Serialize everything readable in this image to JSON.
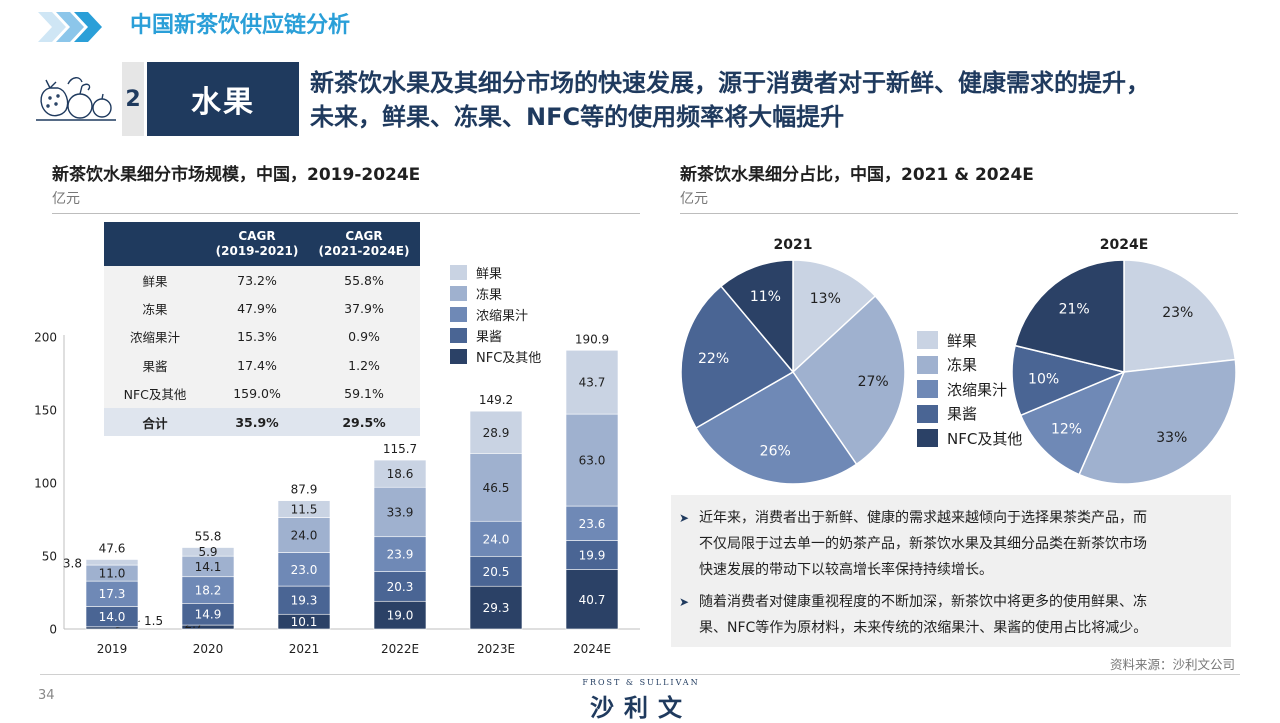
{
  "header": {
    "section_title": "中国新茶饮供应链分析",
    "section_number": "2",
    "section_name": "水果",
    "headline_line1": "新茶饮水果及其细分市场的快速发展，源于消费者对于新鲜、健康需求的提升，",
    "headline_line2": "未来，鲜果、冻果、NFC等的使用频率将大幅提升"
  },
  "left_panel": {
    "title": "新茶饮水果细分市场规模，中国，2019-2024E",
    "unit": "亿元"
  },
  "right_panel": {
    "title": "新茶饮水果细分占比，中国，2021 & 2024E",
    "unit": "亿元"
  },
  "cagr_table": {
    "headers": [
      "CAGR\n(2019-2021)",
      "CAGR\n(2021-2024E)"
    ],
    "rows": [
      [
        "鲜果",
        "73.2%",
        "55.8%"
      ],
      [
        "冻果",
        "47.9%",
        "37.9%"
      ],
      [
        "浓缩果汁",
        "15.3%",
        "0.9%"
      ],
      [
        "果酱",
        "17.4%",
        "1.2%"
      ],
      [
        "NFC及其他",
        "159.0%",
        "59.1%"
      ]
    ],
    "total": [
      "合计",
      "35.9%",
      "29.5%"
    ]
  },
  "colors": {
    "fresh": "#c9d3e3",
    "frozen": "#9fb1cf",
    "concentrate": "#6f89b6",
    "jam": "#4a6594",
    "nfc": "#2b4166",
    "navy": "#1f3a5e",
    "accent_blue": "#2a9fd8"
  },
  "chart_data": [
    {
      "type": "bar",
      "stacked": true,
      "categories": [
        "2019",
        "2020",
        "2021",
        "2022E",
        "2023E",
        "2024E"
      ],
      "series": [
        {
          "name": "NFC及其他",
          "values": [
            1.5,
            2.7,
            10.1,
            19.0,
            29.3,
            40.7
          ]
        },
        {
          "name": "果酱",
          "values": [
            14.0,
            14.9,
            19.3,
            20.3,
            20.5,
            19.9
          ]
        },
        {
          "name": "浓缩果汁",
          "values": [
            17.3,
            18.2,
            23.0,
            23.9,
            24.0,
            23.6
          ]
        },
        {
          "name": "冻果",
          "values": [
            11.0,
            14.1,
            24.0,
            33.9,
            46.5,
            63.0
          ]
        },
        {
          "name": "鲜果",
          "values": [
            3.8,
            5.9,
            11.5,
            18.6,
            28.9,
            43.7
          ]
        }
      ],
      "totals": [
        "47.6",
        "55.8",
        "87.9",
        "115.7",
        "149.2",
        "190.9"
      ],
      "ylim": [
        0,
        200
      ],
      "yticks": [
        "0",
        "50",
        "100",
        "150",
        "200"
      ],
      "legend": [
        "鲜果",
        "冻果",
        "浓缩果汁",
        "果酱",
        "NFC及其他"
      ],
      "legend_position": "top-right",
      "grid": false
    },
    {
      "type": "pie",
      "title": "2021",
      "labels": [
        "鲜果",
        "冻果",
        "浓缩果汁",
        "果酱",
        "NFC及其他"
      ],
      "values": [
        13,
        27,
        26,
        22,
        11
      ],
      "value_labels": [
        "13%",
        "27%",
        "26%",
        "22%",
        "11%"
      ]
    },
    {
      "type": "pie",
      "title": "2024E",
      "labels": [
        "鲜果",
        "冻果",
        "浓缩果汁",
        "果酱",
        "NFC及其他"
      ],
      "values": [
        23,
        33,
        12,
        10,
        21
      ],
      "value_labels": [
        "23%",
        "33%",
        "12%",
        "10%",
        "21%"
      ]
    }
  ],
  "pie_legend": [
    "鲜果",
    "冻果",
    "浓缩果汁",
    "果酱",
    "NFC及其他"
  ],
  "notes": [
    {
      "line1": "近年来，消费者出于新鲜、健康的需求越来越倾向于选择果茶类产品，而",
      "line2": "不仅局限于过去单一的奶茶产品，新茶饮水果及其细分品类在新茶饮市场",
      "line3": "快速发展的带动下以较高增长率保持持续增长。"
    },
    {
      "line1": "随着消费者对健康重视程度的不断加深，新茶饮中将更多的使用鲜果、冻",
      "line2": "果、NFC等作为原材料，未来传统的浓缩果汁、果酱的使用占比将减少。"
    }
  ],
  "source": "资料来源：沙利文公司",
  "page_number": "34",
  "logo": {
    "top": "FROST & SULLIVAN",
    "main": "沙利文"
  }
}
